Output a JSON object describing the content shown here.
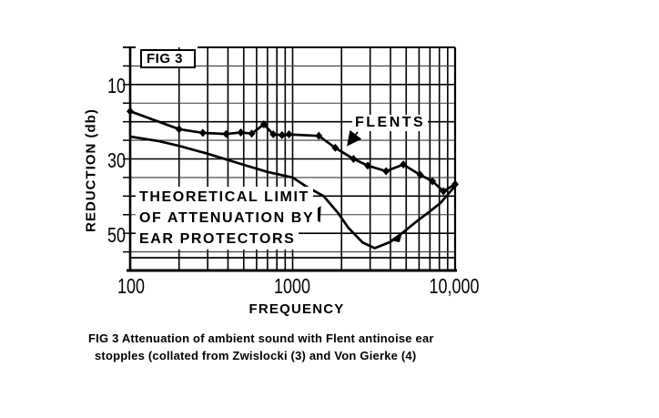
{
  "figure": {
    "fig_box_label": "FIG 3",
    "y_axis_title": "REDUCTION (db)",
    "x_axis_title": "FREQUENCY",
    "y_tick_labels": [
      "10",
      "30",
      "50"
    ],
    "x_tick_labels": [
      "100",
      "1000",
      "10,000"
    ],
    "annotation_flents": "FLENTS",
    "annotation_theory": [
      "THEORETICAL LIMIT",
      "OF ATTENUATION BY",
      "EAR PROTECTORS"
    ],
    "caption_line1": "FIG 3  Attenuation of ambient sound with Flent antinoise ear",
    "caption_line2": "stopples  (collated from Zwislocki (3) and Von Gierke (4)"
  },
  "chart_data": {
    "type": "line",
    "title": "FIG 3",
    "xlabel": "FREQUENCY",
    "ylabel": "REDUCTION (db)",
    "x_scale": "log",
    "x_range": [
      100,
      10000
    ],
    "y_range": [
      0,
      60
    ],
    "y_unit": "db",
    "y_axis_inverted": true,
    "grid": true,
    "y_grid_step": 5,
    "x_major_ticks": [
      100,
      1000,
      10000
    ],
    "y_major_ticks": [
      10,
      30,
      50
    ],
    "series": [
      {
        "name": "FLENTS",
        "markers": true,
        "points": [
          [
            100,
            17.2
          ],
          [
            200,
            22
          ],
          [
            280,
            23
          ],
          [
            390,
            23.3
          ],
          [
            480,
            22.9
          ],
          [
            560,
            23.2
          ],
          [
            665,
            20.7
          ],
          [
            760,
            23.4
          ],
          [
            860,
            23.6
          ],
          [
            950,
            23.4
          ],
          [
            1450,
            23.8
          ],
          [
            1830,
            27
          ],
          [
            2370,
            30
          ],
          [
            2900,
            31.8
          ],
          [
            3760,
            33.3
          ],
          [
            4800,
            31.5
          ],
          [
            6100,
            34.3
          ],
          [
            7250,
            36
          ],
          [
            8480,
            38.7
          ],
          [
            10000,
            36.8
          ]
        ]
      },
      {
        "name": "THEORETICAL LIMIT OF ATTENUATION BY EAR PROTECTORS",
        "markers": false,
        "points": [
          [
            100,
            24
          ],
          [
            150,
            25.2
          ],
          [
            200,
            26.5
          ],
          [
            300,
            28.6
          ],
          [
            400,
            30.3
          ],
          [
            500,
            31.6
          ],
          [
            700,
            33.5
          ],
          [
            1000,
            35
          ],
          [
            1200,
            37.3
          ],
          [
            1550,
            40
          ],
          [
            1900,
            44.5
          ],
          [
            2200,
            48.5
          ],
          [
            2700,
            52.5
          ],
          [
            3200,
            54
          ],
          [
            4000,
            52.3
          ],
          [
            4800,
            49.7
          ],
          [
            5800,
            46.8
          ],
          [
            6900,
            44.3
          ],
          [
            8100,
            41.9
          ],
          [
            10000,
            37.3
          ]
        ]
      }
    ]
  }
}
